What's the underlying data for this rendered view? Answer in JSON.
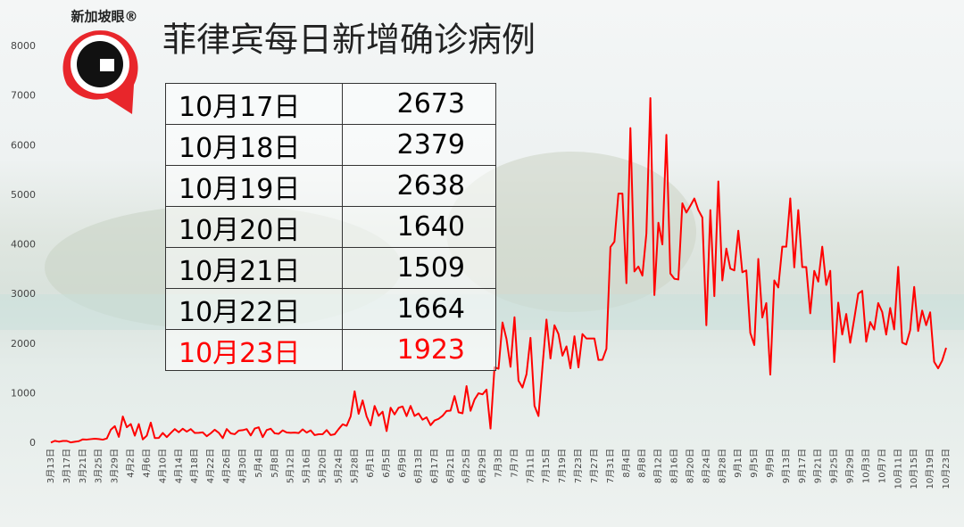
{
  "logo": {
    "text": "新加坡眼®"
  },
  "table": {
    "rows": [
      [
        "10月17日",
        "2673"
      ],
      [
        "10月18日",
        "2379"
      ],
      [
        "10月19日",
        "2638"
      ],
      [
        "10月20日",
        "1640"
      ],
      [
        "10月21日",
        "1509"
      ],
      [
        "10月22日",
        "1664"
      ],
      [
        "10月23日",
        "1923"
      ]
    ],
    "highlight_row": 6,
    "highlight_color": "#ff0000"
  },
  "chart_data": {
    "type": "line",
    "title": "菲律宾每日新增确诊病例",
    "categories": [
      "3月13日",
      null,
      null,
      null,
      "3月17日",
      null,
      null,
      null,
      "3月21日",
      null,
      null,
      null,
      "3月25日",
      null,
      null,
      null,
      "3月29日",
      null,
      null,
      null,
      "4月2日",
      null,
      null,
      null,
      "4月6日",
      null,
      null,
      null,
      "4月10日",
      null,
      null,
      null,
      "4月14日",
      null,
      null,
      null,
      "4月18日",
      null,
      null,
      null,
      "4月22日",
      null,
      null,
      null,
      "4月26日",
      null,
      null,
      null,
      "4月30日",
      null,
      null,
      null,
      "5月4日",
      null,
      null,
      null,
      "5月8日",
      null,
      null,
      null,
      "5月12日",
      null,
      null,
      null,
      "5月16日",
      null,
      null,
      null,
      "5月20日",
      null,
      null,
      null,
      "5月24日",
      null,
      null,
      null,
      "5月28日",
      null,
      null,
      null,
      "6月1日",
      null,
      null,
      null,
      "6月5日",
      null,
      null,
      null,
      "6月9日",
      null,
      null,
      null,
      "6月13日",
      null,
      null,
      null,
      "6月17日",
      null,
      null,
      null,
      "6月21日",
      null,
      null,
      null,
      "6月25日",
      null,
      null,
      null,
      "6月29日",
      null,
      null,
      null,
      "7月3日",
      null,
      null,
      null,
      "7月7日",
      null,
      null,
      null,
      "7月11日",
      null,
      null,
      null,
      "7月15日",
      null,
      null,
      null,
      "7月19日",
      null,
      null,
      null,
      "7月23日",
      null,
      null,
      null,
      "7月27日",
      null,
      null,
      null,
      "7月31日",
      null,
      null,
      null,
      "8月4日",
      null,
      null,
      null,
      "8月8日",
      null,
      null,
      null,
      "8月12日",
      null,
      null,
      null,
      "8月16日",
      null,
      null,
      null,
      "8月20日",
      null,
      null,
      null,
      "8月24日",
      null,
      null,
      null,
      "8月28日",
      null,
      null,
      null,
      "9月1日",
      null,
      null,
      null,
      "9月5日",
      null,
      null,
      null,
      "9月9日",
      null,
      null,
      null,
      "9月13日",
      null,
      null,
      null,
      "9月17日",
      null,
      null,
      null,
      "9月21日",
      null,
      null,
      null,
      "9月25日",
      null,
      null,
      null,
      "9月29日",
      null,
      null,
      null,
      "10月3日",
      null,
      null,
      null,
      "10月7日",
      null,
      null,
      null,
      "10月11日",
      null,
      null,
      null,
      "10月15日",
      null,
      null,
      null,
      "10月19日",
      null,
      null,
      null,
      "10月23日"
    ],
    "values": [
      12,
      47,
      30,
      45,
      45,
      15,
      30,
      40,
      77,
      73,
      82,
      90,
      84,
      71,
      96,
      272,
      343,
      128,
      538,
      322,
      385,
      152,
      385,
      76,
      152,
      414,
      104,
      106,
      206,
      122,
      206,
      284,
      220,
      291,
      233,
      284,
      207,
      209,
      218,
      140,
      200,
      271,
      211,
      102,
      285,
      198,
      181,
      254,
      262,
      284,
      156,
      295,
      320,
      122,
      264,
      292,
      199,
      189,
      258,
      215,
      208,
      213,
      205,
      279,
      213,
      258,
      163,
      180,
      181,
      264,
      163,
      180,
      284,
      380,
      350,
      539,
      1046,
      591,
      862,
      539,
      359,
      751,
      552,
      634,
      244,
      714,
      579,
      714,
      740,
      545,
      751,
      549,
      600,
      473,
      521,
      363,
      457,
      490,
      551,
      650,
      656,
      950,
      622,
      602,
      1150,
      653,
      880,
      1006,
      985,
      1080,
      294,
      1531,
      1500,
      2434,
      2099,
      1540,
      2539,
      1261,
      1122,
      1390,
      2124,
      752,
      547,
      1543,
      2493,
      1707,
      2377,
      2201,
      1764,
      1951,
      1510,
      2155,
      1528,
      2200,
      2110,
      2110,
      2110,
      1678,
      1682,
      1903,
      3954,
      4063,
      5032,
      5032,
      3226,
      6352,
      3462,
      3561,
      3379,
      4226,
      6958,
      2987,
      4444,
      4007,
      6216,
      3420,
      3314,
      3300,
      4836,
      4650,
      4786,
      4933,
      4700,
      4550,
      2378,
      4699,
      2965,
      5277,
      3282,
      3923,
      3520,
      3483,
      4284,
      3446,
      3483,
      2223,
      1979,
      3714,
      2534,
      2825,
      1383,
      3281,
      3139,
      3962,
      3962,
      4935,
      3544,
      4699,
      3550,
      3550,
      2617,
      3475,
      3257,
      3962,
      3190,
      3475,
      1635,
      2833,
      2190,
      2604,
      2025,
      2502,
      3014,
      3071,
      2047,
      2442,
      2291,
      2825,
      2645,
      2190,
      2725,
      2294,
      3556,
      2028,
      1990,
      2279,
      3151,
      2261,
      2673,
      2379,
      2638,
      1640,
      1509,
      1664,
      1923
    ],
    "color": "#ff0000",
    "ylim": [
      0,
      8000
    ],
    "yticks": [
      0,
      1000,
      2000,
      3000,
      4000,
      5000,
      6000,
      7000,
      8000
    ]
  }
}
